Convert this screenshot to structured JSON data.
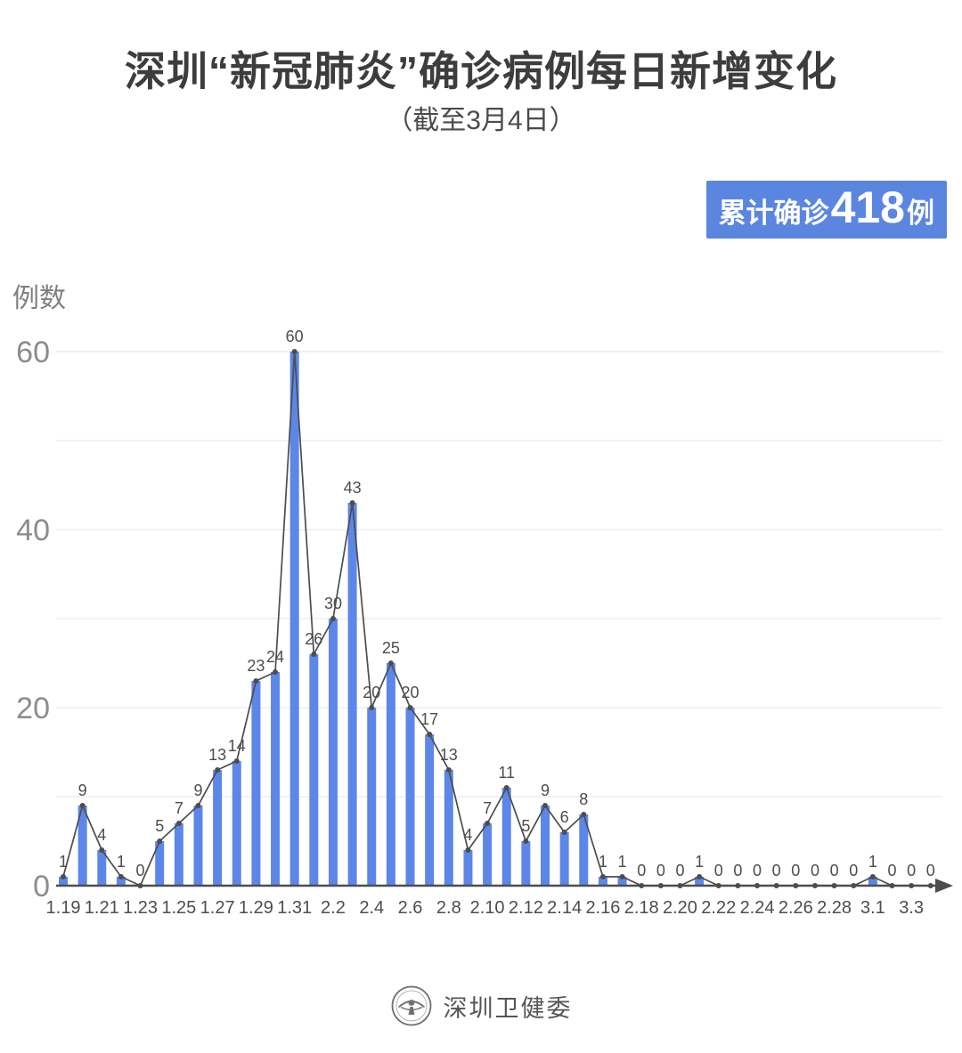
{
  "header": {
    "title": "深圳“新冠肺炎”确诊病例每日新增变化",
    "subtitle": "（截至3月4日）"
  },
  "badge": {
    "prefix": "累计确诊",
    "count": "418",
    "suffix": "例",
    "bg_color": "#5b86e0",
    "text_color": "#ffffff"
  },
  "chart_data": {
    "type": "bar",
    "title": "深圳“新冠肺炎”确诊病例每日新增变化",
    "xlabel": "",
    "ylabel": "例数",
    "x": [
      "1.19",
      "1.20",
      "1.21",
      "1.22",
      "1.23",
      "1.24",
      "1.25",
      "1.26",
      "1.27",
      "1.28",
      "1.29",
      "1.30",
      "1.31",
      "2.1",
      "2.2",
      "2.3",
      "2.4",
      "2.5",
      "2.6",
      "2.7",
      "2.8",
      "2.9",
      "2.10",
      "2.11",
      "2.12",
      "2.13",
      "2.14",
      "2.15",
      "2.16",
      "2.17",
      "2.18",
      "2.19",
      "2.20",
      "2.21",
      "2.22",
      "2.23",
      "2.24",
      "2.25",
      "2.26",
      "2.27",
      "2.28",
      "2.29",
      "3.1",
      "3.2",
      "3.3",
      "3.4"
    ],
    "values": [
      1,
      9,
      4,
      1,
      0,
      5,
      7,
      9,
      13,
      14,
      23,
      24,
      60,
      26,
      30,
      43,
      20,
      25,
      20,
      17,
      13,
      4,
      7,
      11,
      5,
      9,
      6,
      8,
      1,
      1,
      0,
      0,
      0,
      1,
      0,
      0,
      0,
      0,
      0,
      0,
      0,
      0,
      1,
      0,
      0,
      0
    ],
    "x_tick_every": 2,
    "yticks": [
      0,
      20,
      40,
      60
    ],
    "ylim": [
      0,
      60
    ],
    "grid": true,
    "grid_interval": 10,
    "legend": "none",
    "bar_color": "#5c87e8",
    "line_color": "#4d4d4d",
    "label_color": "#4d4d4d",
    "tick_color": "#8c8c8c",
    "grid_color": "#ededed",
    "value_labels_shown": true
  },
  "footer": {
    "source": "深圳卫健委"
  }
}
